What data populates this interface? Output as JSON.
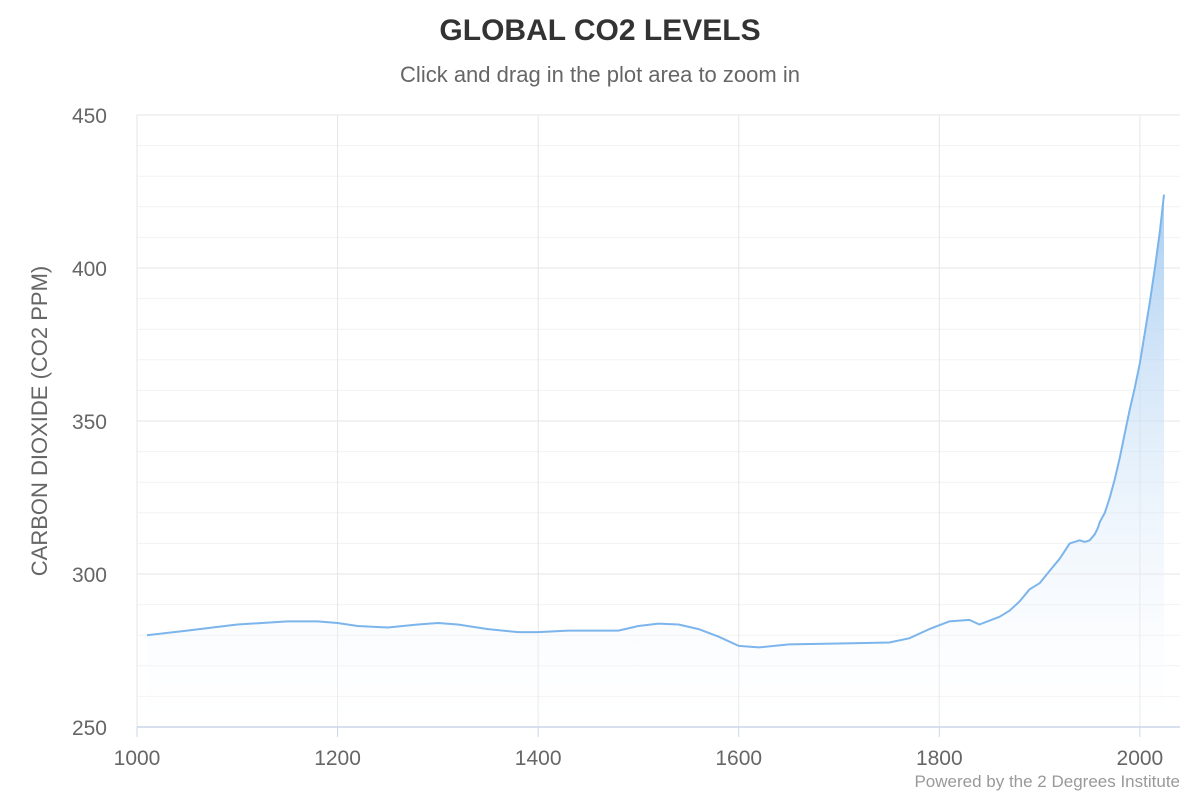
{
  "chart_data": {
    "type": "area",
    "title": "GLOBAL CO2 LEVELS",
    "subtitle": "Click and drag in the plot area to zoom in",
    "xlabel": "",
    "ylabel": "CARBON DIOXIDE (CO2 PPM)",
    "credits": "Powered by the 2 Degrees Institute",
    "xlim": [
      1000,
      2040
    ],
    "ylim": [
      250,
      450
    ],
    "x_ticks": [
      1000,
      1200,
      1400,
      1600,
      1800,
      2000
    ],
    "y_ticks": [
      250,
      300,
      350,
      400,
      450
    ],
    "y_minor_step": 10,
    "grid": true,
    "legend": "none",
    "colors": {
      "line": "#7cb5ec",
      "fill_top": "#9fc8f0",
      "grid": "#e6e6e6",
      "axis": "#ccd6eb"
    },
    "series": [
      {
        "x": [
          1010,
          1050,
          1100,
          1150,
          1180,
          1200,
          1220,
          1250,
          1280,
          1300,
          1320,
          1350,
          1380,
          1400,
          1430,
          1450,
          1480,
          1500,
          1520,
          1540,
          1560,
          1580,
          1600,
          1620,
          1650,
          1700,
          1750,
          1770,
          1790,
          1810,
          1830,
          1840,
          1860,
          1870,
          1880,
          1890,
          1900,
          1910,
          1920,
          1930,
          1940,
          1945,
          1950,
          1955,
          1958,
          1960,
          1965,
          1970,
          1975,
          1980,
          1985,
          1990,
          1995,
          2000,
          2005,
          2010,
          2015,
          2020,
          2024
        ],
        "y": [
          280,
          281.5,
          283.5,
          284.5,
          284.5,
          284,
          283,
          282.5,
          283.5,
          284,
          283.5,
          282,
          281,
          281,
          281.5,
          281.5,
          281.5,
          283,
          283.8,
          283.5,
          282,
          279.5,
          276.5,
          276,
          277,
          277.3,
          277.6,
          279,
          282,
          284.5,
          285,
          283.5,
          286,
          288,
          291,
          295,
          297,
          301,
          305,
          310,
          311,
          310.5,
          311,
          313,
          315,
          317,
          320,
          325,
          331,
          338,
          346,
          354,
          361,
          369,
          379,
          389,
          400,
          412,
          424
        ]
      }
    ]
  }
}
